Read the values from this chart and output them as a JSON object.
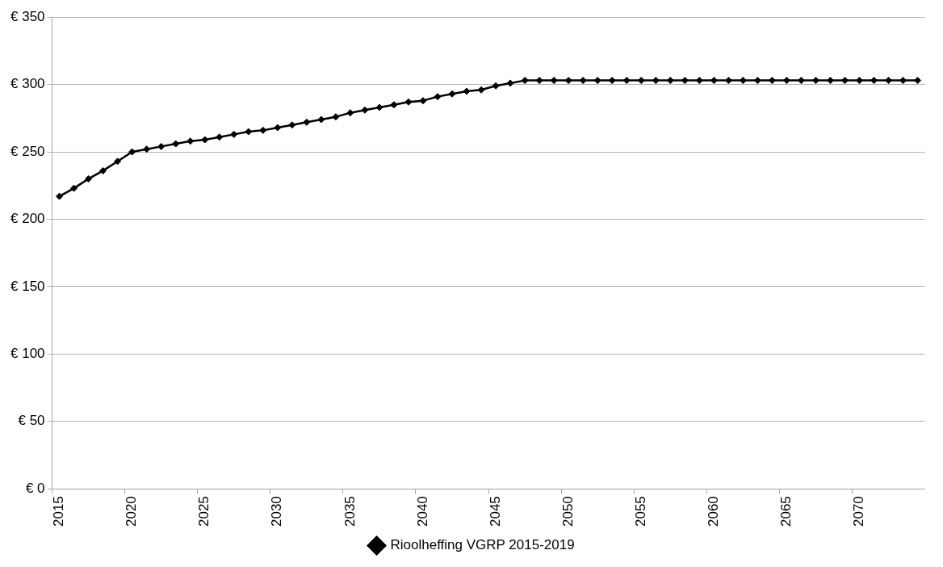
{
  "chart_data": {
    "type": "line",
    "categories": [
      "2015",
      null,
      null,
      null,
      null,
      "2020",
      null,
      null,
      null,
      null,
      "2025",
      null,
      null,
      null,
      null,
      "2030",
      null,
      null,
      null,
      null,
      "2035",
      null,
      null,
      null,
      null,
      "2040",
      null,
      null,
      null,
      null,
      "2045",
      null,
      null,
      null,
      null,
      "2050",
      null,
      null,
      null,
      null,
      "2055",
      null,
      null,
      null,
      null,
      "2060",
      null,
      null,
      null,
      null,
      "2065",
      null,
      null,
      null,
      null,
      "2070",
      null,
      null,
      null,
      null
    ],
    "series": [
      {
        "name": "Rioolheffing VGRP 2015-2019",
        "color": "#000000",
        "values": [
          217,
          223,
          230,
          236,
          243,
          250,
          252,
          254,
          256,
          258,
          259,
          261,
          263,
          265,
          266,
          268,
          270,
          272,
          274,
          276,
          279,
          281,
          283,
          285,
          287,
          288,
          291,
          293,
          295,
          296,
          299,
          301,
          303,
          303,
          303,
          303,
          303,
          303,
          303,
          303,
          303,
          303,
          303,
          303,
          303,
          303,
          303,
          303,
          303,
          303,
          303,
          303,
          303,
          303,
          303,
          303,
          303,
          303,
          303,
          303
        ]
      }
    ],
    "ylim": [
      0,
      350
    ],
    "yticks": [
      {
        "value": 0,
        "label": "€ 0"
      },
      {
        "value": 50,
        "label": "€ 50"
      },
      {
        "value": 100,
        "label": "€ 100"
      },
      {
        "value": 150,
        "label": "€ 150"
      },
      {
        "value": 200,
        "label": "€ 200"
      },
      {
        "value": 250,
        "label": "€ 250"
      },
      {
        "value": 300,
        "label": "€ 300"
      },
      {
        "value": 350,
        "label": "€ 350"
      }
    ],
    "grid": "y",
    "legend": "bottom",
    "marker": "diamond",
    "line_style": "solid"
  }
}
